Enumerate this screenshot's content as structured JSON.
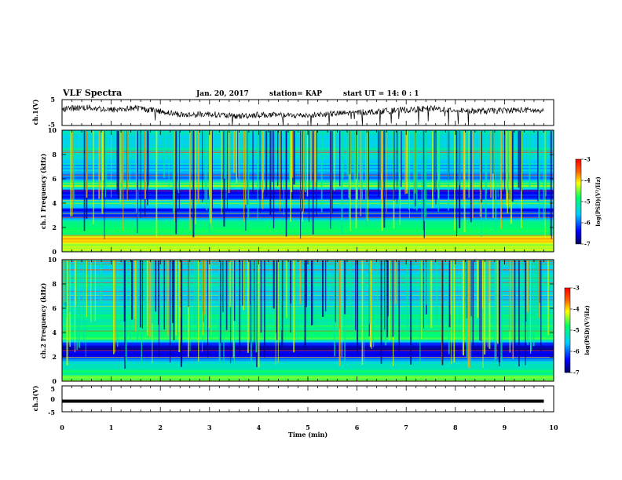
{
  "header": {
    "title": "VLF Spectra",
    "date": "Jan. 20, 2017",
    "station": "station= KAP",
    "start": "start  UT =   14: 0  : 1"
  },
  "colors": {
    "spectrogram_low": "#0000aa",
    "spectrogram_high": "#ff0000",
    "trace": "#000000"
  },
  "chart_data": [
    {
      "id": "ch1-waveform",
      "type": "line",
      "ylabel": "ch.1(V)",
      "ylim": [
        -5,
        5
      ],
      "yticks": [
        "5",
        "-5"
      ],
      "x": [
        0.0,
        0.5,
        1.0,
        1.5,
        2.0,
        2.5,
        3.0,
        3.5,
        4.0,
        4.5,
        5.0,
        5.5,
        6.0,
        6.5,
        7.0,
        7.5,
        8.0,
        8.5,
        9.0,
        9.5,
        9.8
      ],
      "y": [
        1.5,
        2.0,
        1.0,
        1.8,
        0.5,
        -1.0,
        -0.5,
        -1.5,
        -0.8,
        -1.2,
        -1.0,
        -0.5,
        0.0,
        0.5,
        1.0,
        1.5,
        1.0,
        0.5,
        0.8,
        1.0,
        0.3
      ]
    },
    {
      "id": "ch1-spectrogram",
      "type": "heatmap",
      "ylabel": "ch.1 Frequency (kHz)",
      "ylim": [
        0,
        10
      ],
      "yticks": [
        "0",
        "2",
        "4",
        "6",
        "8",
        "10"
      ],
      "xlim": [
        0,
        10
      ],
      "colorbar": {
        "label": "log(PSD)(V²/Hz)",
        "range": [
          -7,
          -3
        ],
        "ticks": [
          "-3",
          "-4",
          "-5",
          "-6",
          "-7"
        ]
      },
      "level_profile_log_psd": {
        "freq_khz": [
          0,
          0.5,
          1,
          1.5,
          2,
          2.5,
          3,
          3.5,
          4,
          4.5,
          5,
          5.5,
          6,
          7,
          8,
          9,
          10
        ],
        "level": [
          -4.2,
          -4.5,
          -3.8,
          -4.8,
          -5.0,
          -5.2,
          -6.4,
          -6.2,
          -5.0,
          -6.2,
          -6.5,
          -4.6,
          -5.8,
          -5.6,
          -5.4,
          -5.3,
          -5.4
        ]
      }
    },
    {
      "id": "ch2-spectrogram",
      "type": "heatmap",
      "ylabel": "ch.2 Frequency (kHz)",
      "ylim": [
        0,
        10
      ],
      "yticks": [
        "0",
        "2",
        "4",
        "6",
        "8",
        "10"
      ],
      "xlim": [
        0,
        10
      ],
      "colorbar": {
        "label": "log(PSD)(V²/Hz)",
        "range": [
          -7,
          -3
        ],
        "ticks": [
          "-3",
          "-4",
          "-5",
          "-6",
          "-7"
        ]
      },
      "level_profile_log_psd": {
        "freq_khz": [
          0,
          0.5,
          1,
          1.5,
          2,
          2.5,
          3,
          3.5,
          4,
          4.5,
          5,
          5.5,
          6,
          7,
          8,
          9,
          10
        ],
        "level": [
          -4.5,
          -4.8,
          -5.0,
          -5.4,
          -6.2,
          -6.6,
          -6.5,
          -4.6,
          -5.0,
          -4.8,
          -5.2,
          -5.0,
          -5.3,
          -5.5,
          -5.3,
          -5.4,
          -5.5
        ]
      }
    },
    {
      "id": "ch3-waveform",
      "type": "line",
      "ylabel": "ch.3(V)",
      "ylim": [
        -5,
        5
      ],
      "yticks": [
        "5",
        "0",
        "-5"
      ],
      "x": [
        0,
        9.8
      ],
      "y": [
        0,
        0
      ]
    }
  ],
  "xaxis": {
    "label": "Time  (min)",
    "ticks": [
      "0",
      "1",
      "2",
      "3",
      "4",
      "5",
      "6",
      "7",
      "8",
      "9",
      "10"
    ]
  }
}
